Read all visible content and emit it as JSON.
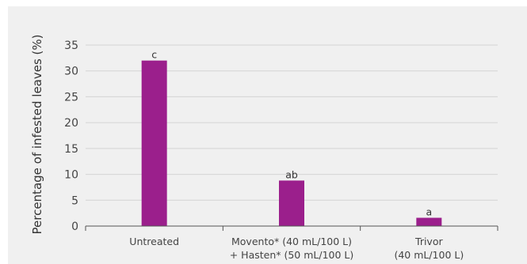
{
  "chart_data": {
    "type": "bar",
    "categories": [
      [
        "Untreated"
      ],
      [
        "Movento* (40 mL/100 L)",
        "+ Hasten* (50 mL/100 L)"
      ],
      [
        "Trivor",
        "(40 mL/100 L)"
      ]
    ],
    "values": [
      32,
      8.8,
      1.6
    ],
    "value_labels": [
      "c",
      "ab",
      "a"
    ],
    "title": "",
    "xlabel": "",
    "ylabel": "Percentage of infested leaves (%)",
    "ylim": [
      0,
      35
    ],
    "yticks": [
      0,
      5,
      10,
      15,
      20,
      25,
      30,
      35
    ],
    "grid": true,
    "bar_color": "#9b1f8c",
    "grid_color": "#d4d4d4",
    "background_color": "#f0f0f0"
  }
}
